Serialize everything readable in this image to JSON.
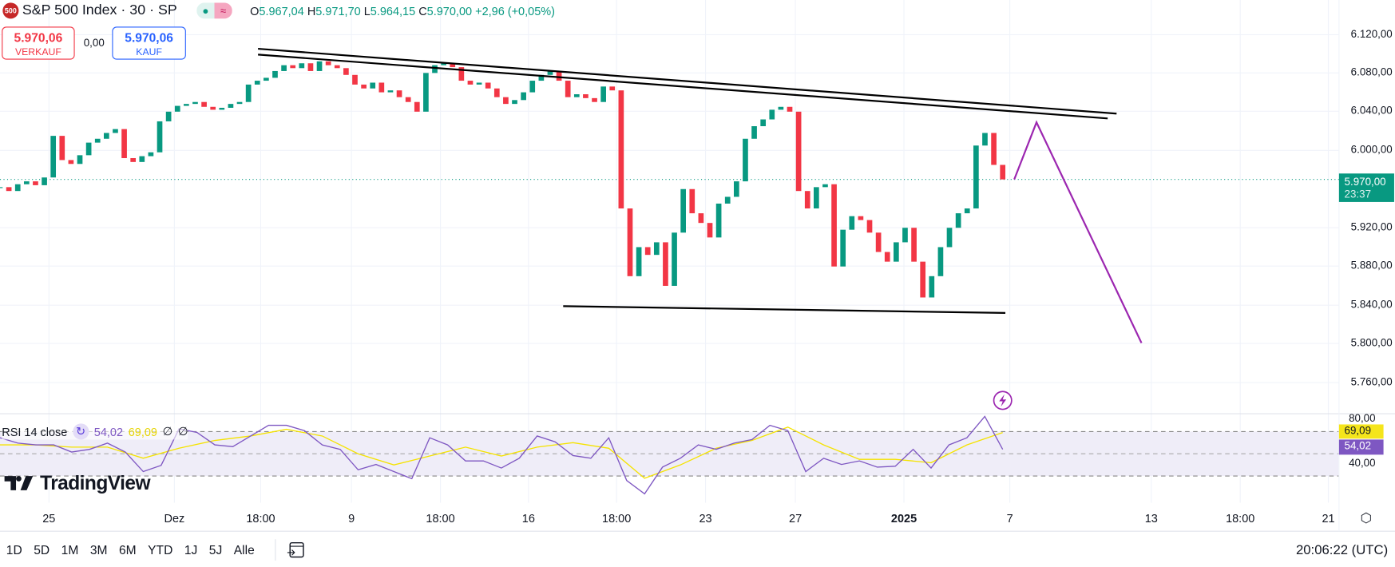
{
  "header": {
    "logo_text": "500",
    "title": "S&P 500 Index · 30 · SP",
    "ohlc": {
      "o_label": "O",
      "o": "5.967,04",
      "h_label": "H",
      "h": "5.971,70",
      "l_label": "L",
      "l": "5.964,15",
      "c_label": "C",
      "c": "5.970,00",
      "change": "+2,96 (+0,05%)"
    }
  },
  "trade": {
    "sell_price": "5.970,06",
    "sell_label": "VERKAUF",
    "spread": "0,00",
    "buy_price": "5.970,06",
    "buy_label": "KAUF"
  },
  "colors": {
    "up": "#089981",
    "down": "#f23645",
    "rsi": "#7e57c2",
    "rsi_ma": "#f5e300",
    "drawing": "#9c27b0",
    "last_price": "#089981"
  },
  "price_axis": [
    "6.120,00",
    "6.080,00",
    "6.040,00",
    "6.000,00",
    "5.920,00",
    "5.880,00",
    "5.840,00",
    "5.800,00",
    "5.760,00"
  ],
  "last_price": {
    "value": "5.970,00",
    "countdown": "23:37"
  },
  "rsi": {
    "label": "RSI 14 close",
    "value": "54,02",
    "ma_value": "69,09",
    "extra1": "∅",
    "extra2": "∅",
    "axis": [
      "80,00",
      "40,00"
    ]
  },
  "time_axis": [
    "25",
    "Dez",
    "18:00",
    "9",
    "18:00",
    "16",
    "18:00",
    "23",
    "27",
    "2025",
    "7",
    "13",
    "18:00",
    "21"
  ],
  "watermark": "TradingView",
  "bottom": {
    "ranges": [
      "1D",
      "5D",
      "1M",
      "3M",
      "6M",
      "YTD",
      "1J",
      "5J",
      "Alle"
    ],
    "clock": "20:06:22 (UTC)"
  },
  "chart_data": {
    "type": "candlestick",
    "ylim": [
      5740,
      6135
    ],
    "closes": [
      5962,
      5958,
      5965,
      5968,
      5964,
      5972,
      6015,
      5990,
      5986,
      5995,
      6008,
      6012,
      6018,
      6022,
      5992,
      5988,
      5994,
      5998,
      6030,
      6040,
      6046,
      6048,
      6050,
      6045,
      6042,
      6044,
      6048,
      6050,
      6068,
      6072,
      6075,
      6082,
      6088,
      6085,
      6090,
      6082,
      6092,
      6088,
      6085,
      6078,
      6068,
      6064,
      6070,
      6060,
      6062,
      6055,
      6050,
      6040,
      6080,
      6088,
      6090,
      6086,
      6072,
      6068,
      6070,
      6064,
      6055,
      6048,
      6052,
      6060,
      6072,
      6078,
      6082,
      6072,
      6055,
      6058,
      6054,
      6050,
      6066,
      6062,
      5940,
      5870,
      5900,
      5892,
      5905,
      5860,
      5915,
      5960,
      5935,
      5925,
      5910,
      5945,
      5952,
      5968,
      6012,
      6025,
      6032,
      6042,
      6045,
      6040,
      5958,
      5940,
      5962,
      5965,
      5880,
      5918,
      5932,
      5928,
      5915,
      5895,
      5885,
      5905,
      5920,
      5885,
      5848,
      5870,
      5900,
      5920,
      5935,
      5940,
      6005,
      6018,
      5985,
      5970
    ],
    "last_price": 5970.0,
    "rsi_values": [
      64.4,
      59.6,
      58,
      58,
      51.6,
      54,
      59.6,
      51.6,
      34,
      39.6,
      72.4,
      69.2,
      58,
      56.4,
      66,
      75.6,
      75.6,
      70.8,
      58,
      54,
      35.6,
      40.4,
      34,
      27.6,
      64.4,
      58,
      43.6,
      43.6,
      37.2,
      46,
      66,
      60.8,
      48.4,
      46,
      64.4,
      26,
      14,
      38,
      46,
      58,
      54,
      59.6,
      62.8,
      75.6,
      70.8,
      34,
      46,
      40.4,
      43.6,
      38,
      38.8,
      54,
      37.2,
      58,
      64.4,
      83.6,
      54.02
    ],
    "rsi_ma_values": [
      58,
      58,
      56,
      56,
      46,
      55,
      62,
      66,
      72,
      66,
      50,
      40,
      48,
      56,
      48,
      56,
      60,
      55,
      28,
      40,
      55,
      62,
      74,
      58,
      45,
      45,
      42,
      58,
      69.09
    ],
    "rsi_bands": [
      70,
      50,
      30
    ],
    "drawings": {
      "resistance_lines": [
        [
          6105,
          6038
        ],
        [
          6099,
          6033
        ]
      ],
      "support_line": [
        5839,
        5832
      ],
      "projection": [
        5970,
        6029,
        5801
      ]
    }
  }
}
